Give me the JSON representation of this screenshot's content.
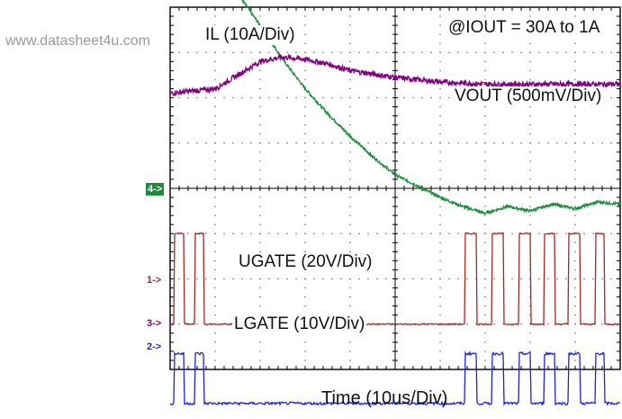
{
  "watermark": "www.datasheet4u.com",
  "chart_data": {
    "type": "line",
    "title": "",
    "xlabel": "Time (10us/Div)",
    "ylabel": "",
    "grid": true,
    "divisions": {
      "x": 10,
      "y": 8
    },
    "annotations": {
      "condition": "@IOUT = 30A to 1A",
      "il_label": "IL (10A/Div)",
      "vout_label": "VOUT (500mV/Div)",
      "ugate_label": "UGATE (20V/Div)",
      "lgate_label": "LGATE (10V/Div)"
    },
    "channel_markers": [
      "4->",
      "1->",
      "3->",
      "2->"
    ],
    "series": [
      {
        "name": "IL (10A/Div)",
        "channel": "4",
        "color": "#1d8a3e",
        "x_div": [
          0.0,
          0.1,
          0.2,
          0.4,
          0.6,
          0.8,
          1.0,
          1.5,
          2.0,
          2.5,
          3.0,
          3.5,
          4.0,
          4.5,
          5.0,
          5.5,
          6.0,
          6.5,
          7.0,
          7.5,
          8.0,
          8.5,
          9.0,
          9.5,
          10.0
        ],
        "y_div": [
          5.4,
          5.85,
          5.7,
          5.9,
          5.65,
          5.3,
          5.1,
          4.3,
          3.6,
          2.85,
          2.2,
          1.65,
          1.15,
          0.7,
          0.3,
          0.05,
          -0.2,
          -0.4,
          -0.55,
          -0.4,
          -0.5,
          -0.35,
          -0.45,
          -0.3,
          -0.35
        ]
      },
      {
        "name": "VOUT (500mV/Div)",
        "channel": "3",
        "color": "#800080",
        "x_div": [
          0.0,
          0.5,
          1.0,
          1.5,
          2.0,
          2.5,
          3.0,
          3.5,
          4.0,
          5.0,
          6.0,
          7.0,
          8.0,
          9.0,
          10.0
        ],
        "y_div": [
          2.1,
          2.15,
          2.2,
          2.5,
          2.8,
          2.9,
          2.85,
          2.75,
          2.6,
          2.45,
          2.35,
          2.3,
          2.3,
          2.3,
          2.3
        ]
      },
      {
        "name": "UGATE (20V/Div)",
        "channel": "1",
        "color": "#a0282a",
        "pulses_div": [
          [
            0.1,
            0.3
          ],
          [
            0.55,
            0.75
          ],
          [
            6.55,
            6.8
          ],
          [
            7.15,
            7.4
          ],
          [
            7.75,
            8.0
          ],
          [
            8.3,
            8.55
          ],
          [
            8.85,
            9.1
          ],
          [
            9.45,
            9.65
          ]
        ],
        "low_div": -3.0,
        "high_div": -1.0
      },
      {
        "name": "LGATE (10V/Div)",
        "channel": "2",
        "color": "#2222c8",
        "pulses_div": [
          [
            0.1,
            0.3
          ],
          [
            0.55,
            0.75
          ],
          [
            6.55,
            6.8
          ],
          [
            7.15,
            7.4
          ],
          [
            7.75,
            8.0
          ],
          [
            8.3,
            8.55
          ],
          [
            8.85,
            9.1
          ],
          [
            9.45,
            9.65
          ]
        ],
        "high_div": -3.65,
        "low_div": -4.75
      }
    ]
  }
}
